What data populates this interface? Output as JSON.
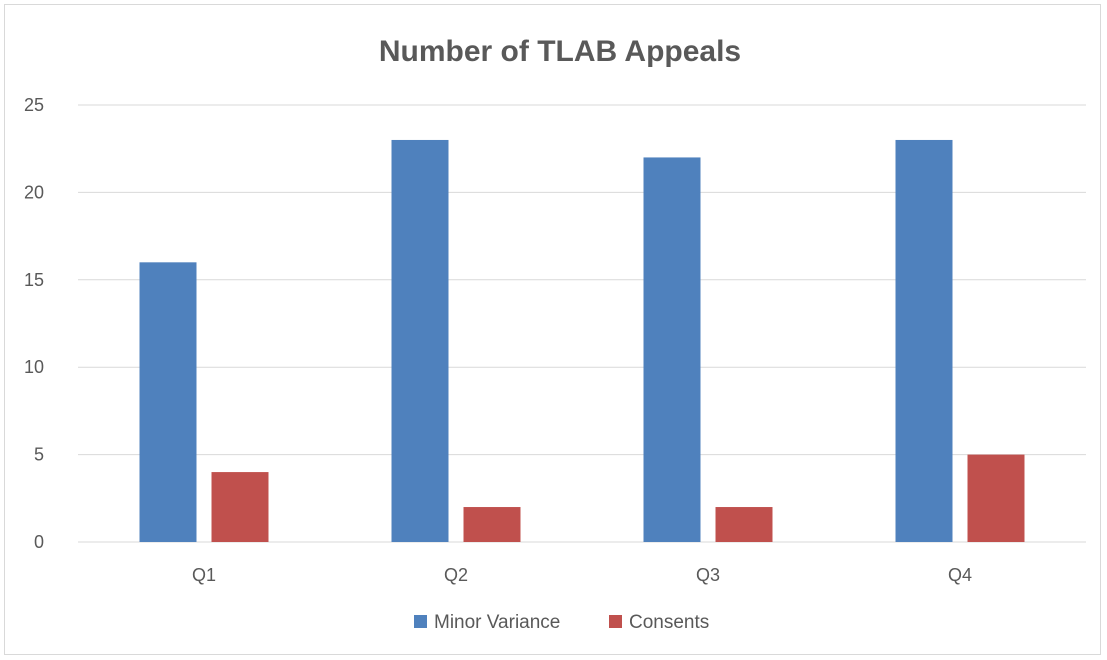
{
  "chart_data": {
    "type": "bar",
    "title": "Number of TLAB Appeals",
    "xlabel": "",
    "ylabel": "",
    "categories": [
      "Q1",
      "Q2",
      "Q3",
      "Q4"
    ],
    "series": [
      {
        "name": "Minor Variance",
        "values": [
          16,
          23,
          22,
          23
        ],
        "color": "#4f81bd"
      },
      {
        "name": "Consents",
        "values": [
          4,
          2,
          2,
          5
        ],
        "color": "#c0504d"
      }
    ],
    "yticks": [
      "0",
      "5",
      "10",
      "15",
      "20",
      "25"
    ],
    "ylim": [
      0,
      25
    ],
    "grid": true,
    "legend_position": "bottom-center",
    "colors": {
      "gridline": "#d9d9d9",
      "axis_text": "#595959",
      "title": "#595959",
      "frame": "#d9d9d9"
    }
  }
}
